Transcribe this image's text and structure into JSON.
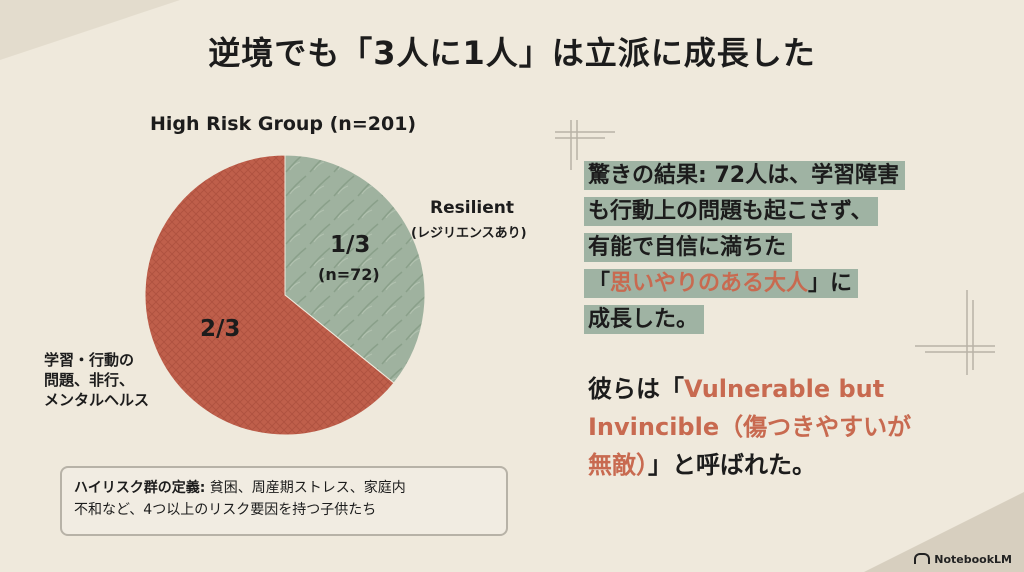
{
  "title": "逆境でも「3人に1人」は立派に成長した",
  "chart_data": {
    "type": "pie",
    "title": "High Risk Group (n=201)",
    "slices": [
      {
        "label": "Resilient",
        "sublabel": "(レジリエンスあり)",
        "value_label": "1/3",
        "count_label": "(n=72)",
        "value": 72,
        "color": "#9fb29f"
      },
      {
        "label_lines": [
          "学習・行動の",
          "問題、非行、",
          "メンタルヘルス"
        ],
        "value_label": "2/3",
        "value": 129,
        "color": "#bf5f4b"
      }
    ]
  },
  "definition": {
    "label": "ハイリスク群の定義:",
    "text_line1": " 貧困、周産期ストレス、家庭内",
    "text_line2": "不和など、4つ以上のリスク要因を持つ子供たち"
  },
  "highlight": {
    "line1": "驚きの結果: 72人は、学習障害",
    "line2": "も行動上の問題も起こさず、",
    "line3": "有能で自信に満ちた",
    "line4_open": "「",
    "line4_accent": "思いやりのある大人",
    "line4_close": "」に",
    "line5": "成長した。"
  },
  "quote": {
    "line1_pre": "彼らは「",
    "line1_accent": "Vulnerable but",
    "line2_accent": "Invincible（傷つきやすいが",
    "line3_accent": "無敵）",
    "line3_post": "」と呼ばれた。"
  },
  "brand": "NotebookLM"
}
